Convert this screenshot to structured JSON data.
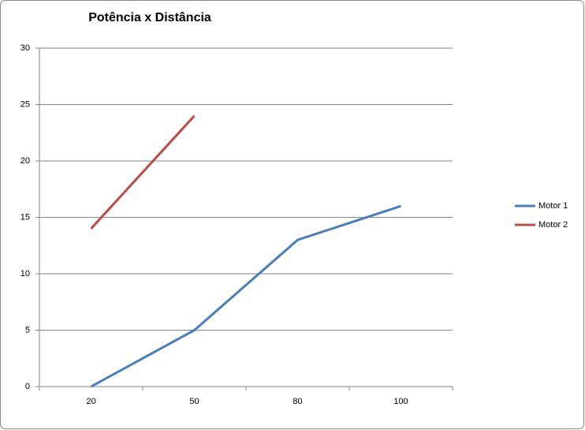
{
  "chart_data": {
    "type": "line",
    "title": "Potência x Distância",
    "categories": [
      "20",
      "50",
      "80",
      "100"
    ],
    "series": [
      {
        "name": "Motor 1",
        "color": "#4a7ebb",
        "values": [
          0,
          5,
          13,
          16
        ]
      },
      {
        "name": "Motor 2",
        "color": "#be4b48",
        "values": [
          14,
          24,
          null,
          null
        ]
      }
    ],
    "ylim": [
      0,
      30
    ],
    "yticks": [
      0,
      5,
      10,
      15,
      20,
      25,
      30
    ],
    "grid": true,
    "legend": "right"
  }
}
